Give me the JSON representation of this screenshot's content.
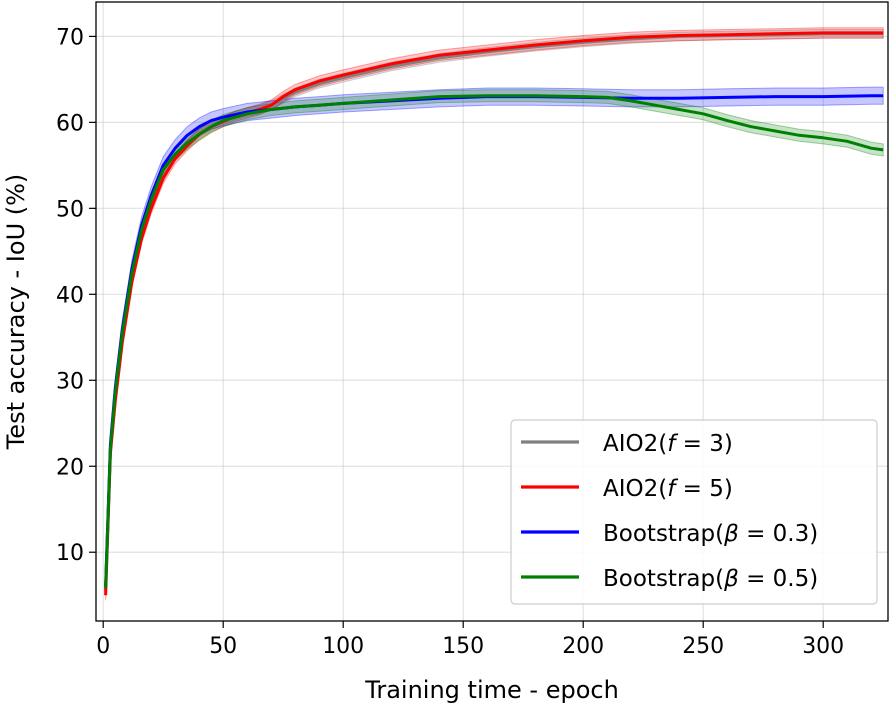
{
  "chart_data": {
    "type": "line",
    "xlabel": "Training time - epoch",
    "ylabel": "Test accuracy - IoU (%)",
    "xlim": [
      -3,
      327
    ],
    "ylim": [
      2,
      74
    ],
    "xticks": [
      0,
      50,
      100,
      150,
      200,
      250,
      300
    ],
    "yticks": [
      10,
      20,
      30,
      40,
      50,
      60,
      70
    ],
    "grid": true,
    "legend_position": "lower-right",
    "series": [
      {
        "name": "AIO2(f=3)",
        "legend_prefix": "AIO2(",
        "legend_var": "f",
        "legend_suffix": " = 3)",
        "color": "#808080",
        "x": [
          1,
          3,
          5,
          8,
          12,
          16,
          20,
          25,
          30,
          35,
          40,
          45,
          50,
          55,
          60,
          65,
          70,
          80,
          90,
          100,
          120,
          140,
          160,
          180,
          200,
          220,
          240,
          260,
          280,
          300,
          320,
          325
        ],
        "values": [
          5.5,
          22,
          28,
          35,
          42,
          47,
          50.5,
          54,
          56,
          57.5,
          58.8,
          59.6,
          60.2,
          60.8,
          61.2,
          61.5,
          62,
          63.5,
          64.5,
          65.2,
          66.5,
          67.5,
          68.2,
          68.8,
          69.3,
          69.7,
          70,
          70.1,
          70.2,
          70.3,
          70.3,
          70.3
        ],
        "band": 0.5
      },
      {
        "name": "AIO2(f=5)",
        "legend_prefix": "AIO2(",
        "legend_var": "f",
        "legend_suffix": " = 5)",
        "color": "#ff0000",
        "x": [
          1,
          3,
          5,
          8,
          12,
          16,
          20,
          25,
          30,
          35,
          40,
          45,
          50,
          55,
          60,
          65,
          70,
          75,
          80,
          90,
          100,
          120,
          140,
          160,
          180,
          200,
          220,
          240,
          260,
          280,
          300,
          320,
          325
        ],
        "values": [
          5,
          21.5,
          27.5,
          34.5,
          41.5,
          46.5,
          50,
          53.5,
          55.8,
          57.3,
          58.6,
          59.5,
          60.1,
          60.7,
          61.1,
          61.5,
          62,
          63,
          63.8,
          64.8,
          65.5,
          66.8,
          67.8,
          68.4,
          69,
          69.5,
          69.9,
          70.1,
          70.2,
          70.3,
          70.4,
          70.4,
          70.4
        ],
        "band": 0.6
      },
      {
        "name": "Bootstrap(β=0.3)",
        "legend_prefix": "Bootstrap(",
        "legend_var": "β",
        "legend_suffix": " = 0.3)",
        "color": "#0000ff",
        "x": [
          1,
          3,
          5,
          8,
          12,
          16,
          20,
          25,
          30,
          35,
          40,
          45,
          50,
          60,
          70,
          80,
          90,
          100,
          120,
          140,
          160,
          180,
          200,
          220,
          240,
          260,
          280,
          300,
          320,
          325
        ],
        "values": [
          6,
          22.5,
          29,
          36,
          43,
          48,
          51.5,
          55,
          57,
          58.5,
          59.5,
          60.2,
          60.6,
          61.2,
          61.5,
          61.8,
          62,
          62.2,
          62.5,
          62.8,
          63,
          63,
          62.9,
          62.8,
          62.8,
          62.9,
          63,
          63,
          63.1,
          63.1
        ],
        "band": 1.0
      },
      {
        "name": "Bootstrap(β=0.5)",
        "legend_prefix": "Bootstrap(",
        "legend_var": "β",
        "legend_suffix": " = 0.5)",
        "color": "#008000",
        "x": [
          1,
          3,
          5,
          8,
          12,
          16,
          20,
          25,
          30,
          35,
          40,
          45,
          50,
          60,
          70,
          80,
          90,
          100,
          120,
          140,
          160,
          180,
          200,
          210,
          220,
          230,
          240,
          250,
          260,
          270,
          280,
          290,
          300,
          310,
          320,
          325
        ],
        "values": [
          5.8,
          22,
          28.5,
          35.5,
          42.5,
          47.5,
          51,
          54.5,
          56.3,
          57.6,
          58.6,
          59.5,
          60.2,
          61,
          61.5,
          61.8,
          62,
          62.2,
          62.6,
          63,
          63.1,
          63.1,
          63,
          62.9,
          62.5,
          62,
          61.5,
          61,
          60.2,
          59.5,
          59,
          58.5,
          58.2,
          57.8,
          57,
          56.8
        ],
        "band": 0.7
      }
    ]
  }
}
